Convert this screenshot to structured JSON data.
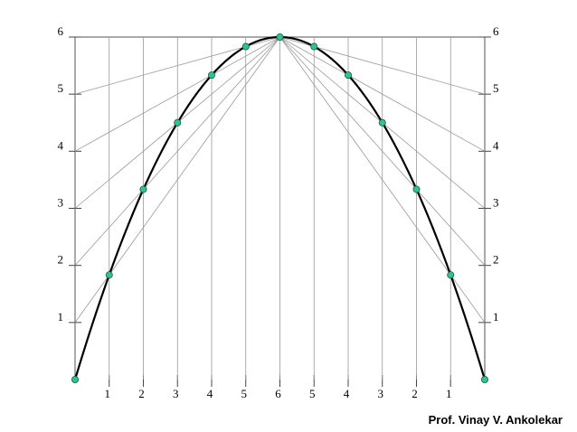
{
  "left_labels": [
    "1",
    "2",
    "3",
    "4",
    "5",
    "6"
  ],
  "right_labels": [
    "1",
    "2",
    "3",
    "4",
    "5",
    "6"
  ],
  "bottom_labels": [
    "1",
    "2",
    "3",
    "4",
    "5",
    "6",
    "5",
    "4",
    "3",
    "2",
    "1"
  ],
  "author": "Prof. Vinay V. Ankolekar"
}
